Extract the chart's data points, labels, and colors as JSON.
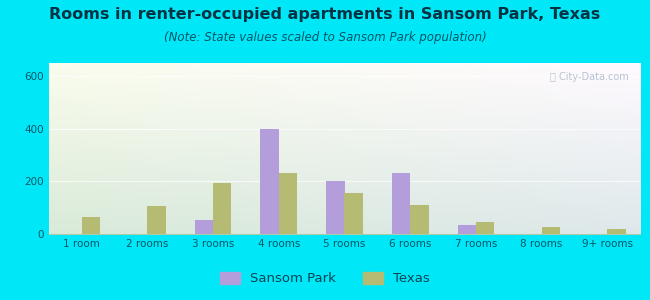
{
  "title": "Rooms in renter-occupied apartments in Sansom Park, Texas",
  "subtitle": "(Note: State values scaled to Sansom Park population)",
  "categories": [
    "1 room",
    "2 rooms",
    "3 rooms",
    "4 rooms",
    "5 rooms",
    "6 rooms",
    "7 rooms",
    "8 rooms",
    "9+ rooms"
  ],
  "sansom_park": [
    0,
    0,
    55,
    400,
    200,
    230,
    35,
    0,
    0
  ],
  "texas": [
    65,
    105,
    195,
    230,
    155,
    110,
    45,
    25,
    18
  ],
  "sansom_color": "#b39ddb",
  "texas_color": "#b5bb72",
  "background_outer": "#00e8f8",
  "ylim": [
    0,
    650
  ],
  "yticks": [
    0,
    200,
    400,
    600
  ],
  "bar_width": 0.28,
  "title_fontsize": 11.5,
  "subtitle_fontsize": 8.5,
  "tick_fontsize": 7.5,
  "legend_fontsize": 9.5
}
